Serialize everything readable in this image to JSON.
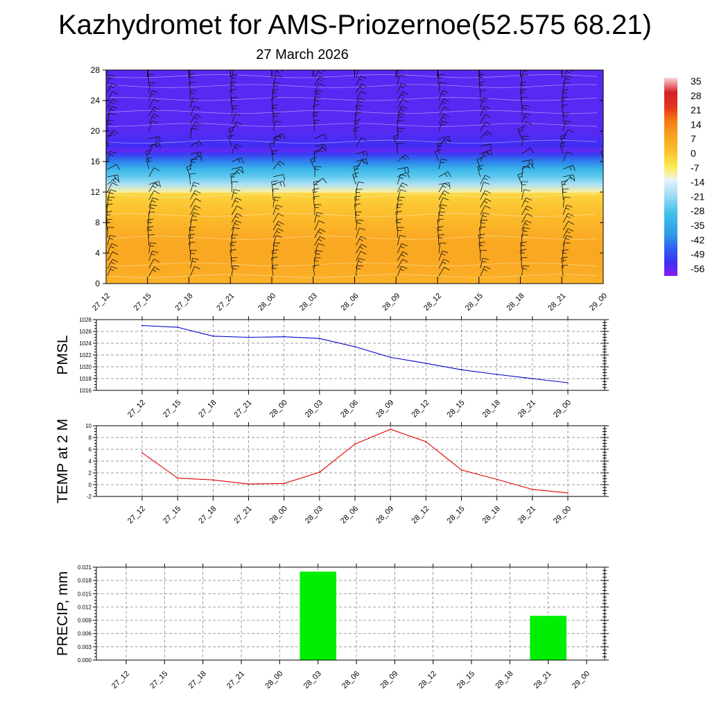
{
  "title": "Kazhydromet for AMS-Priozernoe(52.575 68.21)",
  "subtitle": "27 March 2026",
  "chart_data": [
    {
      "type": "heatmap",
      "name": "Temperature and wind by level",
      "x_tick_labels": [
        "27_12",
        "27_15",
        "27_18",
        "27_21",
        "28_00",
        "28_03",
        "28_06",
        "28_09",
        "28_12",
        "28_15",
        "28_18",
        "28_21",
        "29_00"
      ],
      "y_tick_labels": [
        "0",
        "4",
        "8",
        "12",
        "16",
        "20",
        "24",
        "28"
      ],
      "ylim": [
        0,
        28
      ],
      "temperature_profile": {
        "levels": [
          0,
          2,
          4,
          6,
          8,
          10,
          11.8,
          12,
          13,
          14,
          15,
          16,
          17,
          17.5,
          18,
          20,
          22,
          24,
          26,
          28
        ],
        "values": [
          3,
          5,
          6,
          5,
          2,
          -1,
          -4,
          -11,
          -20,
          -27,
          -33,
          -43,
          -52,
          -57,
          -54,
          -56,
          -56,
          -56,
          -56,
          -56
        ]
      },
      "colorbar": {
        "labels": [
          "35",
          "28",
          "21",
          "14",
          "7",
          "0",
          "-7",
          "-14",
          "-21",
          "-28",
          "-35",
          "-42",
          "-49",
          "-56"
        ],
        "stops": [
          {
            "v": -60,
            "c": "#8a1cf2"
          },
          {
            "v": -54,
            "c": "#3f2ff3"
          },
          {
            "v": -47,
            "c": "#2f5ef2"
          },
          {
            "v": -40,
            "c": "#2e9ce8"
          },
          {
            "v": -30,
            "c": "#3fc0ea"
          },
          {
            "v": -20,
            "c": "#aee0f5"
          },
          {
            "v": -14,
            "c": "#e6f2fa"
          },
          {
            "v": -12,
            "c": "#f8f1b6"
          },
          {
            "v": -7,
            "c": "#fbe84a"
          },
          {
            "v": 0,
            "c": "#fcbd2d"
          },
          {
            "v": 7,
            "c": "#f9a31f"
          },
          {
            "v": 14,
            "c": "#f57d15"
          },
          {
            "v": 21,
            "c": "#e3351a"
          },
          {
            "v": 28,
            "c": "#d6202a"
          },
          {
            "v": 35,
            "c": "#f9d9d9"
          }
        ]
      }
    },
    {
      "type": "line",
      "name": "PMSL",
      "ylabel": "PMSL",
      "categories": [
        "27_12",
        "27_15",
        "27_18",
        "27_21",
        "28_00",
        "28_03",
        "28_06",
        "28_09",
        "28_12",
        "28_15",
        "28_18",
        "28_21",
        "29_00"
      ],
      "values": [
        1027.0,
        1026.7,
        1025.2,
        1025.0,
        1025.1,
        1024.8,
        1023.4,
        1021.6,
        1020.6,
        1019.5,
        1018.7,
        1018.0,
        1017.3
      ],
      "ylim": [
        1016,
        1028
      ],
      "yticks": [
        "1016",
        "1018",
        "1020",
        "1022",
        "1024",
        "1026",
        "1028"
      ],
      "ytick_values": [
        1016,
        1018,
        1020,
        1022,
        1024,
        1026,
        1028
      ],
      "color": "#0000cc",
      "grid": true
    },
    {
      "type": "line",
      "name": "TEMP at 2 M",
      "ylabel": "TEMP at 2 M",
      "categories": [
        "27_12",
        "27_15",
        "27_18",
        "27_21",
        "28_00",
        "28_03",
        "28_06",
        "28_09",
        "28_12",
        "28_15",
        "28_18",
        "28_21",
        "29_00"
      ],
      "values": [
        5.4,
        1.1,
        0.8,
        0.1,
        0.2,
        2.1,
        6.9,
        9.4,
        7.3,
        2.5,
        0.9,
        -0.8,
        -1.4
      ],
      "ylim": [
        -2,
        10
      ],
      "yticks": [
        "-2",
        "0",
        "2",
        "4",
        "6",
        "8",
        "10"
      ],
      "ytick_values": [
        -2,
        0,
        2,
        4,
        6,
        8,
        10
      ],
      "color": "#e00000",
      "grid": true
    },
    {
      "type": "bar",
      "name": "PRECIP, mm",
      "ylabel": "PRECIP, mm",
      "categories": [
        "27_12",
        "27_15",
        "27_18",
        "27_21",
        "28_00",
        "28_03",
        "28_06",
        "28_09",
        "28_12",
        "28_15",
        "28_18",
        "28_21",
        "29_00"
      ],
      "values": [
        0,
        0,
        0,
        0,
        0,
        0.02,
        0,
        0,
        0,
        0,
        0,
        0.01,
        0
      ],
      "ylim": [
        0,
        0.021
      ],
      "yticks": [
        "0.000",
        "0.003",
        "0.006",
        "0.009",
        "0.012",
        "0.015",
        "0.018",
        "0.021"
      ],
      "ytick_values": [
        0,
        0.003,
        0.006,
        0.009,
        0.012,
        0.015,
        0.018,
        0.021
      ],
      "color": "#00ee00",
      "grid": true
    }
  ]
}
